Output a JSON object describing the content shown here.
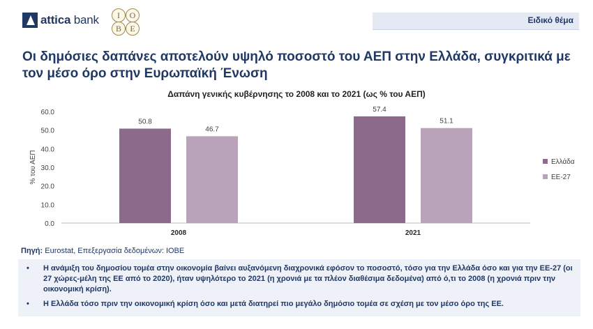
{
  "header": {
    "brand": "attica",
    "brand_suffix": "bank",
    "iobe_letters": [
      "I",
      "O",
      "B",
      "E"
    ],
    "topic": "Ειδικό θέμα"
  },
  "main_title": "Οι δημόσιες δαπάνες αποτελούν υψηλό ποσοστό του ΑΕΠ στην Ελλάδα, συγκριτικά με τον μέσο όρο στην Ευρωπαϊκή Ένωση",
  "chart_data": {
    "type": "bar",
    "title": "Δαπάνη γενικής κυβέρνησης το 2008 και το 2021 (ως % του ΑΕΠ)",
    "categories": [
      "2008",
      "2021"
    ],
    "series": [
      {
        "name": "Ελλάδα",
        "values": [
          50.8,
          57.4
        ],
        "color": "#8c6a8b"
      },
      {
        "name": "ΕΕ-27",
        "values": [
          46.7,
          51.1
        ],
        "color": "#b9a3b9"
      }
    ],
    "value_labels": [
      [
        "50.8",
        "57.4"
      ],
      [
        "46.7",
        "51.1"
      ]
    ],
    "ylabel": "% του ΑΕΠ",
    "xlabel": "",
    "ylim": [
      0,
      60
    ],
    "yticks": [
      "0.0",
      "10.0",
      "20.0",
      "30.0",
      "40.0",
      "50.0",
      "60.0"
    ],
    "grid": false,
    "legend": "right"
  },
  "source": {
    "label": "Πηγή:",
    "text": "Eurostat, Επεξεργασία δεδομένων: ΙΟΒΕ"
  },
  "bullets": [
    {
      "mark": "•",
      "text": "Η ανάμιξη του δημοσίου τομέα στην οικονομία βαίνει αυξανόμενη διαχρονικά εφόσον το ποσοστό, τόσο για την Ελλάδα όσο και για την ΕΕ-27 (οι 27 χώρες-μέλη της ΕΕ από το 2020), ήταν υψηλότερο το 2021 (η χρονιά με τα πλέον διαθέσιμα δεδομένα) από ό,τι το 2008 (η χρονιά πριν την οικονομική κρίση)."
    },
    {
      "mark": "•",
      "text": "Η Ελλάδα τόσο πριν την οικονομική κρίση όσο και μετά διατηρεί πιο μεγάλο δημόσιο τομέα σε σχέση με τον μέσο όρο της ΕΕ."
    }
  ]
}
